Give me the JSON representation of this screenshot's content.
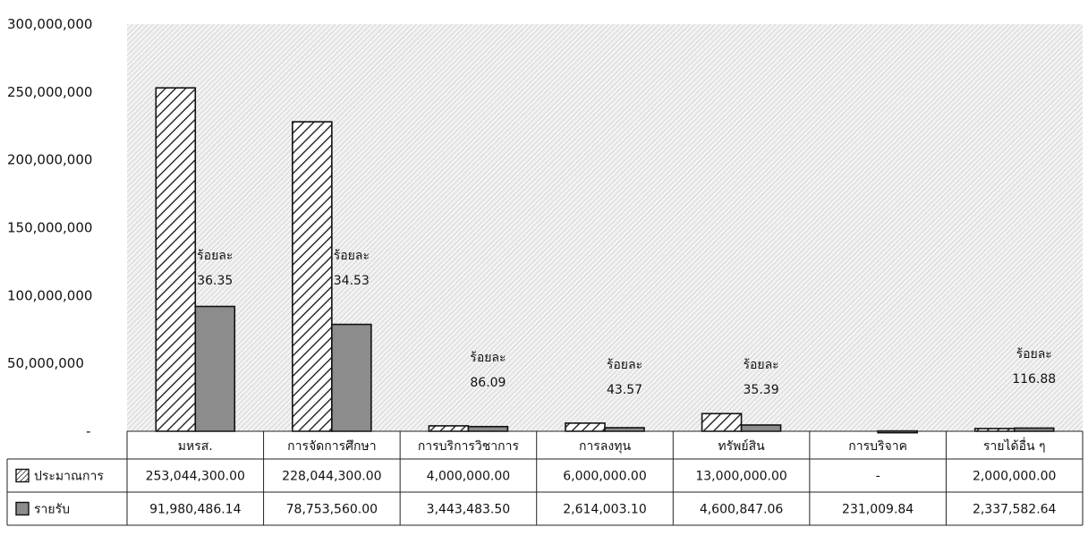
{
  "chart_data": {
    "type": "bar",
    "categories": [
      "มหรส.",
      "การจัดการศึกษา",
      "การบริการวิชาการ",
      "การลงทุน",
      "ทรัพย์สิน",
      "การบริจาค",
      "รายได้อื่น ๆ"
    ],
    "series": [
      {
        "name": "ประมาณการ",
        "values": [
          253044300,
          228044300,
          4000000,
          6000000,
          13000000,
          0,
          2000000
        ],
        "display": [
          "253,044,300.00",
          "228,044,300.00",
          "4,000,000.00",
          "6,000,000.00",
          "13,000,000.00",
          "-",
          "2,000,000.00"
        ],
        "pattern": "diagonal-hatch"
      },
      {
        "name": "รายรับ",
        "values": [
          91980486.14,
          78753560.0,
          3443483.5,
          2614003.1,
          4600847.06,
          231009.84,
          2337582.64
        ],
        "display": [
          "91,980,486.14",
          "78,753,560.00",
          "3,443,483.50",
          "2,614,003.10",
          "4,600,847.06",
          "231,009.84",
          "2,337,582.64"
        ],
        "color": "#8c8c8c"
      }
    ],
    "percent_labels": [
      {
        "category_index": 0,
        "label": "ร้อยละ",
        "value": "36.35"
      },
      {
        "category_index": 1,
        "label": "ร้อยละ",
        "value": "34.53"
      },
      {
        "category_index": 2,
        "label": "ร้อยละ",
        "value": "86.09"
      },
      {
        "category_index": 3,
        "label": "ร้อยละ",
        "value": "43.57"
      },
      {
        "category_index": 4,
        "label": "ร้อยละ",
        "value": "35.39"
      },
      {
        "category_index": 6,
        "label": "ร้อยละ",
        "value": "116.88"
      }
    ],
    "y_ticks": [
      {
        "value": 300000000,
        "label": "300,000,000"
      },
      {
        "value": 250000000,
        "label": "250,000,000"
      },
      {
        "value": 200000000,
        "label": "200,000,000"
      },
      {
        "value": 150000000,
        "label": "150,000,000"
      },
      {
        "value": 100000000,
        "label": "100,000,000"
      },
      {
        "value": 50000000,
        "label": "50,000,000"
      },
      {
        "value": 0,
        "label": "-"
      }
    ],
    "ylim": [
      0,
      300000000
    ],
    "title": "",
    "xlabel": "",
    "ylabel": "",
    "grid": false,
    "legend": "data-table",
    "plot_background": "hatched-light-gray"
  }
}
